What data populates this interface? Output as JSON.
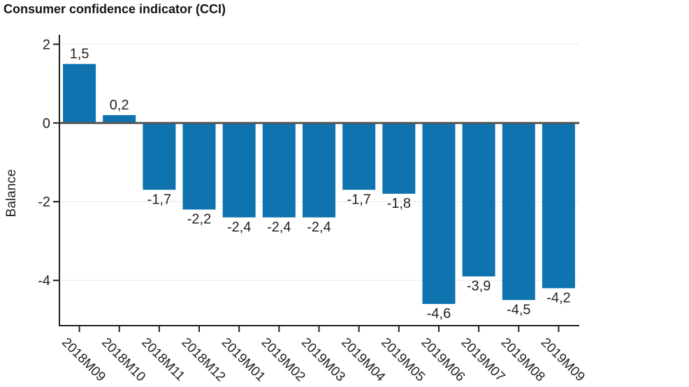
{
  "title": "Consumer confidence indicator (CCI)",
  "chart_data": {
    "type": "bar",
    "title": "Consumer confidence indicator (CCI)",
    "xlabel": "",
    "ylabel": "Balance",
    "categories": [
      "2018M09",
      "2018M10",
      "2018M11",
      "2018M12",
      "2019M01",
      "2019M02",
      "2019M03",
      "2019M04",
      "2019M05",
      "2019M06",
      "2019M07",
      "2019M08",
      "2019M09"
    ],
    "values": [
      1.5,
      0.2,
      -1.7,
      -2.2,
      -2.4,
      -2.4,
      -2.4,
      -1.7,
      -1.8,
      -4.6,
      -3.9,
      -4.5,
      -4.2
    ],
    "value_labels": [
      "1,5",
      "0,2",
      "-1,7",
      "-2,2",
      "-2,4",
      "-2,4",
      "-2,4",
      "-1,7",
      "-1,8",
      "-4,6",
      "-3,9",
      "-4,5",
      "-4,2"
    ],
    "y_ticks": [
      2,
      0,
      -2,
      -4
    ],
    "y_tick_labels": [
      "2",
      "0",
      "-2",
      "-4"
    ],
    "ylim": [
      -5.15,
      2.15
    ],
    "grid": true,
    "legend_position": "none",
    "decimal_separator": ",",
    "x_label_rotation_deg": 45,
    "colors": {
      "bar": "#0e73ae",
      "zero_line": "#58585a",
      "gridline": "#e7e7e7",
      "axis": "#1d1d1b",
      "text": "#222222",
      "background": "#ffffff"
    }
  }
}
